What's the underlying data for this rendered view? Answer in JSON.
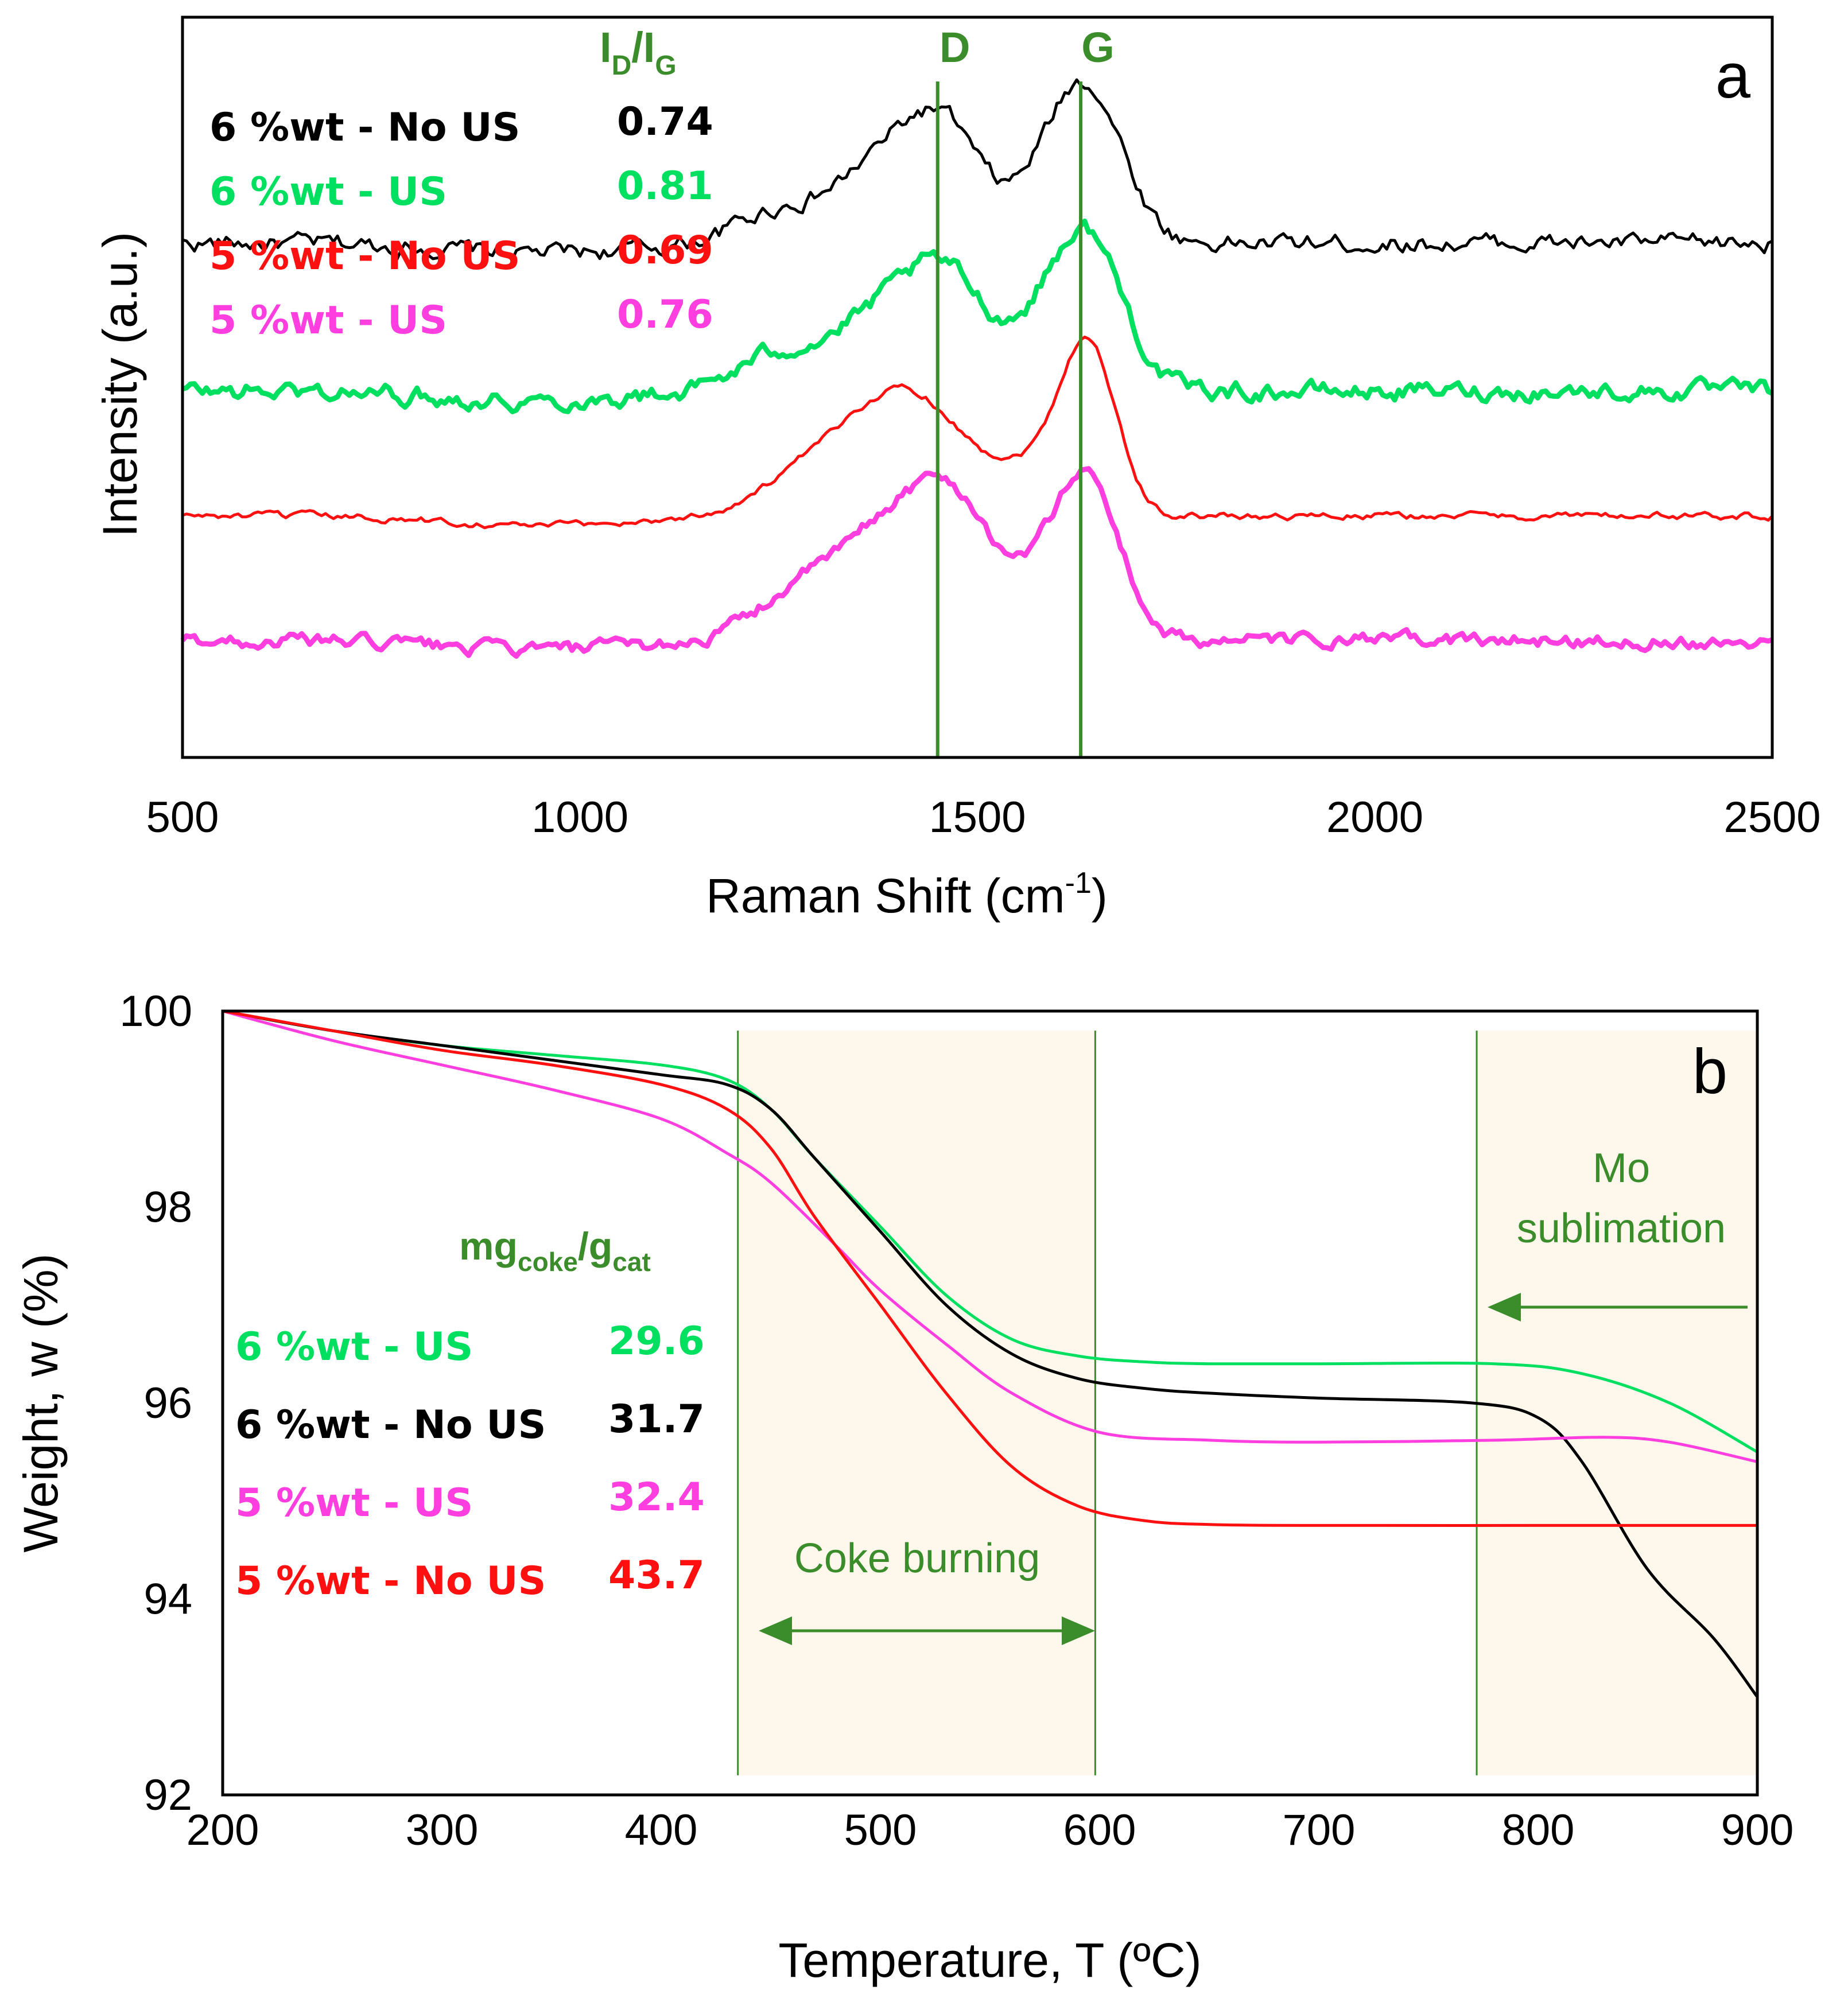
{
  "chart_data": [
    {
      "type": "line",
      "panel_label": "a",
      "xlabel": "Raman Shift (cm",
      "xlabel_sup": "-1",
      "xlabel_end": ")",
      "ylabel": "Intensity (a.u.)",
      "xlim": [
        500,
        2500
      ],
      "xticks": [
        "500",
        "1000",
        "1500",
        "2000",
        "2500"
      ],
      "bands": [
        {
          "name": "D",
          "x": 1450
        },
        {
          "name": "G",
          "x": 1630
        }
      ],
      "ratio_header": {
        "main": "I",
        "sub1": "D",
        "slash": "/I",
        "sub2": "G"
      },
      "series": [
        {
          "name": "6 %wt - No US",
          "ratio": "0.74",
          "color": "#000000",
          "offset": 3.3,
          "peaks": [
            [
              1250,
              0.2,
              55
            ],
            [
              1390,
              0.55,
              60
            ],
            [
              1465,
              0.55,
              45
            ],
            [
              1640,
              0.95,
              45
            ],
            [
              1580,
              0.25,
              40
            ]
          ],
          "base": 0.45,
          "noise": 0.045
        },
        {
          "name": "6 %wt - US",
          "ratio": "0.81",
          "color": "#00e060",
          "offset": 2.35,
          "peaks": [
            [
              1250,
              0.22,
              55
            ],
            [
              1390,
              0.5,
              65
            ],
            [
              1470,
              0.55,
              50
            ],
            [
              1640,
              0.95,
              45
            ],
            [
              1580,
              0.25,
              40
            ]
          ],
          "base": 0.35,
          "noise": 0.045
        },
        {
          "name": "5 %wt - No US",
          "ratio": "0.69",
          "color": "#ff1010",
          "offset": 1.55,
          "peaks": [
            [
              1280,
              0.2,
              60
            ],
            [
              1410,
              0.8,
              75
            ],
            [
              1640,
              1.05,
              35
            ],
            [
              1575,
              0.25,
              45
            ]
          ],
          "base": 0.2,
          "noise": 0.018
        },
        {
          "name": "5 %wt - US",
          "ratio": "0.76",
          "color": "#ff3ee0",
          "offset": 0.75,
          "peaks": [
            [
              1270,
              0.25,
              55
            ],
            [
              1400,
              0.75,
              70
            ],
            [
              1480,
              0.55,
              50
            ],
            [
              1640,
              1.0,
              40
            ],
            [
              1580,
              0.25,
              40
            ]
          ],
          "base": 0.25,
          "noise": 0.035
        }
      ]
    },
    {
      "type": "line",
      "panel_label": "b",
      "xlabel": "Temperature, T (ºC)",
      "ylabel": "Weight, w (%)",
      "xlim": [
        200,
        900
      ],
      "ylim": [
        92,
        100
      ],
      "xticks": [
        "200",
        "300",
        "400",
        "500",
        "600",
        "700",
        "800",
        "900"
      ],
      "yticks": [
        "92",
        "94",
        "96",
        "98",
        "100"
      ],
      "regions": [
        {
          "name": "Coke burning",
          "x0": 435,
          "x1": 598
        },
        {
          "name": "Mo sublimation",
          "x0": 772,
          "x1": 900
        }
      ],
      "annotation_coke": "Coke burning",
      "annotation_mo_1": "Mo",
      "annotation_mo_2": "sublimation",
      "coke_header": {
        "main": "mg",
        "sub1": "coke",
        "slash": "/g",
        "sub2": "cat"
      },
      "series": [
        {
          "name": "6 %wt - US",
          "coke": "29.6",
          "color": "#00e060",
          "x": [
            200,
            250,
            300,
            350,
            400,
            430,
            450,
            470,
            500,
            530,
            560,
            590,
            620,
            650,
            700,
            780,
            820,
            860,
            900
          ],
          "y": [
            100,
            99.8,
            99.65,
            99.55,
            99.45,
            99.3,
            99.0,
            98.5,
            97.8,
            97.1,
            96.65,
            96.48,
            96.42,
            96.4,
            96.4,
            96.4,
            96.3,
            96.0,
            95.5
          ]
        },
        {
          "name": "6 %wt - No US",
          "coke": "31.7",
          "color": "#000000",
          "x": [
            200,
            250,
            300,
            350,
            400,
            430,
            450,
            470,
            500,
            530,
            560,
            590,
            620,
            650,
            700,
            770,
            800,
            820,
            850,
            880,
            900
          ],
          "y": [
            100,
            99.8,
            99.65,
            99.5,
            99.35,
            99.25,
            99.0,
            98.5,
            97.75,
            97.0,
            96.5,
            96.25,
            96.15,
            96.1,
            96.05,
            96.0,
            95.85,
            95.4,
            94.3,
            93.6,
            93.0
          ]
        },
        {
          "name": "5 %wt - US",
          "coke": "32.4",
          "color": "#ff3ee0",
          "x": [
            200,
            250,
            300,
            350,
            400,
            430,
            450,
            480,
            500,
            530,
            560,
            600,
            650,
            700,
            780,
            830,
            860,
            900
          ],
          "y": [
            100,
            99.7,
            99.45,
            99.2,
            98.9,
            98.55,
            98.25,
            97.6,
            97.15,
            96.6,
            96.1,
            95.7,
            95.62,
            95.6,
            95.62,
            95.65,
            95.6,
            95.4
          ]
        },
        {
          "name": "5 %wt - No US",
          "coke": "43.7",
          "color": "#ff1010",
          "x": [
            200,
            250,
            300,
            350,
            400,
            430,
            450,
            470,
            500,
            530,
            560,
            590,
            620,
            650,
            700,
            800,
            900
          ],
          "y": [
            100,
            99.8,
            99.6,
            99.45,
            99.25,
            99.0,
            98.6,
            97.9,
            97.0,
            96.1,
            95.35,
            94.95,
            94.8,
            94.76,
            94.75,
            94.75,
            94.75
          ]
        }
      ]
    }
  ]
}
